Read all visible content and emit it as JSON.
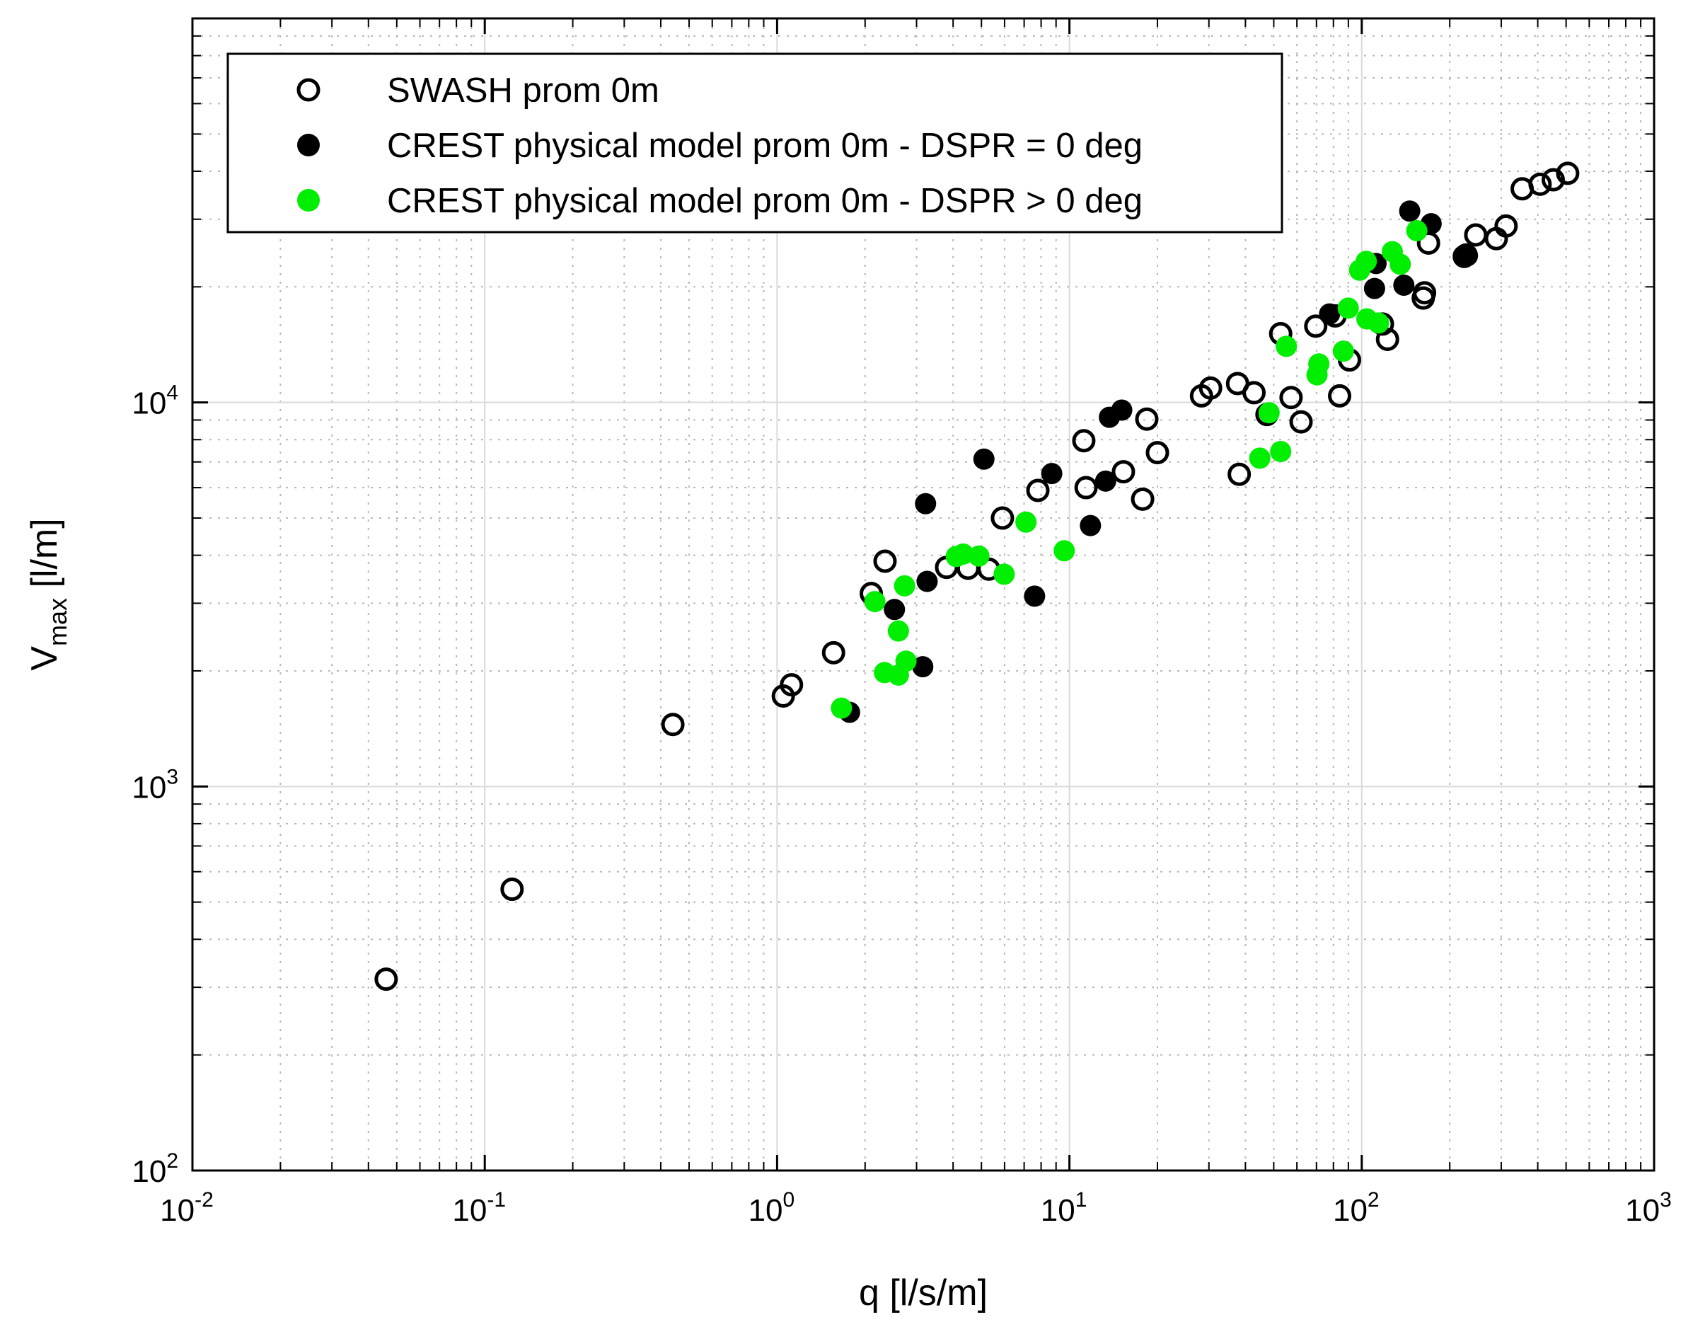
{
  "chart_data": {
    "type": "scatter",
    "xscale": "log",
    "yscale": "log",
    "xlim": [
      0.01,
      1000
    ],
    "ylim": [
      100,
      100000
    ],
    "xlabel": "q [l/s/m]",
    "ylabel": {
      "main": "V",
      "sub": "max",
      "unit": " [l/m]"
    },
    "xticks": [
      {
        "value": 0.01,
        "base": "10",
        "exp": "-2"
      },
      {
        "value": 0.1,
        "base": "10",
        "exp": "-1"
      },
      {
        "value": 1,
        "base": "10",
        "exp": "0"
      },
      {
        "value": 10,
        "base": "10",
        "exp": "1"
      },
      {
        "value": 100,
        "base": "10",
        "exp": "2"
      },
      {
        "value": 1000,
        "base": "10",
        "exp": "3"
      }
    ],
    "yticks": [
      {
        "value": 100,
        "base": "10",
        "exp": "2"
      },
      {
        "value": 1000,
        "base": "10",
        "exp": "3"
      },
      {
        "value": 10000,
        "base": "10",
        "exp": "4"
      }
    ],
    "grid": true,
    "minor_grid": true,
    "legend_position": "top-left",
    "series": [
      {
        "name": "SWASH prom 0m",
        "marker": "open-circle",
        "color": "#000000",
        "points": [
          [
            0.046,
            315
          ],
          [
            0.124,
            540
          ],
          [
            0.44,
            1450
          ],
          [
            1.05,
            1720
          ],
          [
            1.12,
            1840
          ],
          [
            1.56,
            2230
          ],
          [
            2.1,
            3180
          ],
          [
            2.34,
            3860
          ],
          [
            3.8,
            3720
          ],
          [
            4.5,
            3700
          ],
          [
            5.3,
            3680
          ],
          [
            5.9,
            5000
          ],
          [
            7.8,
            5900
          ],
          [
            11.2,
            7950
          ],
          [
            11.4,
            6000
          ],
          [
            15.3,
            6600
          ],
          [
            17.8,
            5600
          ],
          [
            18.4,
            9050
          ],
          [
            20,
            7400
          ],
          [
            28.3,
            10400
          ],
          [
            30.4,
            10900
          ],
          [
            37.6,
            11200
          ],
          [
            38.1,
            6500
          ],
          [
            42.8,
            10600
          ],
          [
            47.4,
            9300
          ],
          [
            52.8,
            15100
          ],
          [
            57.3,
            10300
          ],
          [
            62,
            8900
          ],
          [
            69.6,
            15800
          ],
          [
            81.1,
            16800
          ],
          [
            84,
            10400
          ],
          [
            90.8,
            12900
          ],
          [
            117.7,
            16000
          ],
          [
            122.5,
            14600
          ],
          [
            162.3,
            18700
          ],
          [
            164,
            19300
          ],
          [
            169.2,
            26000
          ],
          [
            224.2,
            24000
          ],
          [
            227.6,
            24200
          ],
          [
            245.4,
            27300
          ],
          [
            288.6,
            26700
          ],
          [
            311.7,
            28800
          ],
          [
            353.8,
            36000
          ],
          [
            407.4,
            37000
          ],
          [
            451.9,
            38000
          ],
          [
            506.4,
            39500
          ]
        ]
      },
      {
        "name": "CREST physical model prom 0m - DSPR = 0 deg",
        "marker": "filled-circle",
        "color": "#000000",
        "points": [
          [
            1.77,
            1560
          ],
          [
            2.52,
            2890
          ],
          [
            3.15,
            2050
          ],
          [
            3.22,
            5450
          ],
          [
            3.26,
            3420
          ],
          [
            5.1,
            7120
          ],
          [
            7.6,
            3130
          ],
          [
            8.7,
            6530
          ],
          [
            11.8,
            4780
          ],
          [
            13.3,
            6240
          ],
          [
            13.7,
            9150
          ],
          [
            15.1,
            9550
          ],
          [
            77.6,
            17000
          ],
          [
            110.6,
            19800
          ],
          [
            111.9,
            23000
          ],
          [
            139.3,
            20200
          ],
          [
            145.9,
            31500
          ],
          [
            172.7,
            29200
          ],
          [
            229.9,
            24100
          ]
        ]
      },
      {
        "name": "CREST physical model prom 0m - DSPR > 0 deg",
        "marker": "filled-circle",
        "color": "#00ee00",
        "points": [
          [
            1.66,
            1600
          ],
          [
            2.16,
            3030
          ],
          [
            2.33,
            1980
          ],
          [
            2.6,
            2540
          ],
          [
            2.6,
            1950
          ],
          [
            2.73,
            3330
          ],
          [
            2.76,
            2120
          ],
          [
            4.1,
            3970
          ],
          [
            4.33,
            4030
          ],
          [
            4.9,
            3980
          ],
          [
            5.98,
            3570
          ],
          [
            7.1,
            4880
          ],
          [
            9.6,
            4110
          ],
          [
            44.8,
            7160
          ],
          [
            48.2,
            9400
          ],
          [
            52.8,
            7450
          ],
          [
            55.2,
            14000
          ],
          [
            70.3,
            11800
          ],
          [
            71.3,
            12600
          ],
          [
            86.5,
            13600
          ],
          [
            89.9,
            17600
          ],
          [
            98.3,
            22100
          ],
          [
            103.6,
            23300
          ],
          [
            104.1,
            16500
          ],
          [
            114.1,
            16100
          ],
          [
            127.2,
            24700
          ],
          [
            135.4,
            22900
          ],
          [
            154.3,
            28000
          ]
        ]
      }
    ]
  }
}
